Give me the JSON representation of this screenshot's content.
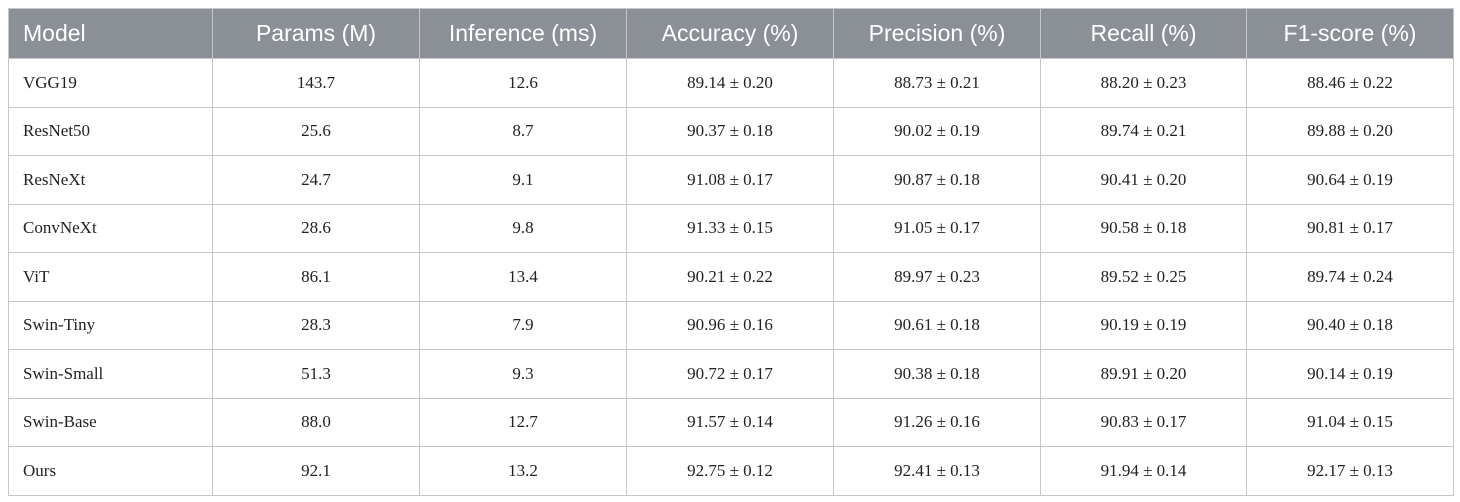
{
  "table": {
    "header": [
      "Model",
      "Params (M)",
      "Inference (ms)",
      "Accuracy (%)",
      "Precision (%)",
      "Recall (%)",
      "F1-score (%)"
    ],
    "rows": [
      [
        "VGG19",
        "143.7",
        "12.6",
        "89.14 ± 0.20",
        "88.73 ± 0.21",
        "88.20 ± 0.23",
        "88.46 ± 0.22"
      ],
      [
        "ResNet50",
        "25.6",
        "8.7",
        "90.37 ± 0.18",
        "90.02 ± 0.19",
        "89.74 ± 0.21",
        "89.88 ± 0.20"
      ],
      [
        "ResNeXt",
        "24.7",
        "9.1",
        "91.08 ± 0.17",
        "90.87 ± 0.18",
        "90.41 ± 0.20",
        "90.64 ± 0.19"
      ],
      [
        "ConvNeXt",
        "28.6",
        "9.8",
        "91.33 ± 0.15",
        "91.05 ± 0.17",
        "90.58 ± 0.18",
        "90.81 ± 0.17"
      ],
      [
        "ViT",
        "86.1",
        "13.4",
        "90.21 ± 0.22",
        "89.97 ± 0.23",
        "89.52 ± 0.25",
        "89.74 ± 0.24"
      ],
      [
        "Swin-Tiny",
        "28.3",
        "7.9",
        "90.96 ± 0.16",
        "90.61 ± 0.18",
        "90.19 ± 0.19",
        "90.40 ± 0.18"
      ],
      [
        "Swin-Small",
        "51.3",
        "9.3",
        "90.72 ± 0.17",
        "90.38 ± 0.18",
        "89.91 ± 0.20",
        "90.14 ± 0.19"
      ],
      [
        "Swin-Base",
        "88.0",
        "12.7",
        "91.57 ± 0.14",
        "91.26 ± 0.16",
        "90.83 ± 0.17",
        "91.04 ± 0.15"
      ],
      [
        "Ours",
        "92.1",
        "13.2",
        "92.75 ± 0.12",
        "92.41 ± 0.13",
        "91.94 ± 0.14",
        "92.17 ± 0.13"
      ]
    ]
  }
}
